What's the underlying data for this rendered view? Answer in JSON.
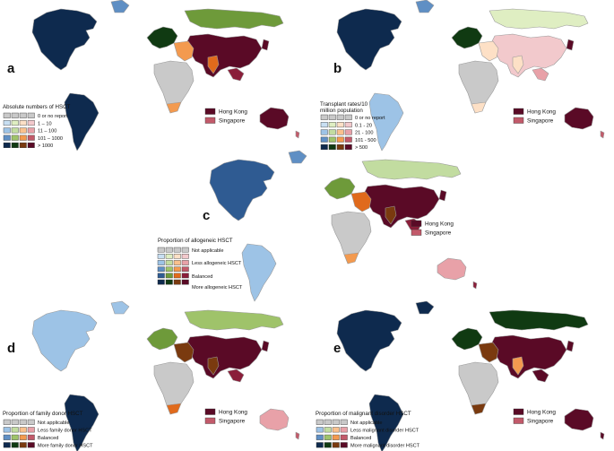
{
  "palette": {
    "grey": "#c9c9c9",
    "blue": [
      "#c8dff2",
      "#9dc3e6",
      "#5f8fc4",
      "#2f5b92",
      "#0e2a4e"
    ],
    "green": [
      "#dfeec2",
      "#c2dca0",
      "#9fc36a",
      "#6e9a3a",
      "#103a12"
    ],
    "orange": [
      "#fde0c6",
      "#f9c08d",
      "#f39a4f",
      "#e06a1c",
      "#7a3a0f"
    ],
    "maroon": [
      "#f2c9cc",
      "#e8a1a8",
      "#c25a6a",
      "#8a1e3a",
      "#5a0a26"
    ],
    "hongkong": "#5a0a26",
    "singapore": "#c25a6a"
  },
  "icons": {
    "maps": "world-choropleth-map"
  },
  "panels": [
    {
      "id": "a",
      "letter": "a",
      "legend": {
        "title": "Absolute numbers of HSCT",
        "rows": [
          "0 or no report",
          "1 – 10",
          "11 – 100",
          "101 – 1000",
          "> 1000"
        ]
      },
      "hongkong_label": "Hong Kong",
      "singapore_label": "Singapore"
    },
    {
      "id": "b",
      "letter": "b",
      "legend": {
        "title_lines": [
          "Transplant rates/10",
          "million population"
        ],
        "rows": [
          "0 or no report",
          "0.1 - 20",
          "21 - 100",
          "101 - 500",
          "> 500"
        ]
      },
      "hongkong_label": "Hong Kong",
      "singapore_label": "Singapore"
    },
    {
      "id": "c",
      "letter": "c",
      "legend": {
        "title": "Proportion of allogeneic HSCT",
        "rows": [
          "Not applicable",
          "",
          "Less allogeneic HSCT",
          "",
          "Balanced",
          "",
          "More allogeneic HSCT"
        ]
      },
      "hongkong_label": "Hong Kong",
      "singapore_label": "Singapore"
    },
    {
      "id": "d",
      "letter": "d",
      "legend": {
        "title": "Proportion of family donor HSCT",
        "rows": [
          "Not applicable",
          "Less family donor HSCT",
          "Balanced",
          "More family donor HSCT"
        ]
      },
      "hongkong_label": "Hong Kong",
      "singapore_label": "Singapore"
    },
    {
      "id": "e",
      "letter": "e",
      "legend": {
        "title": "Proportion of malignant disorder HSCT",
        "rows": [
          "Not applicable",
          "Less malignant disorder HSCT",
          "Balanced",
          "More malignant disorder HSCT"
        ]
      },
      "hongkong_label": "Hong Kong",
      "singapore_label": "Singapore"
    }
  ]
}
